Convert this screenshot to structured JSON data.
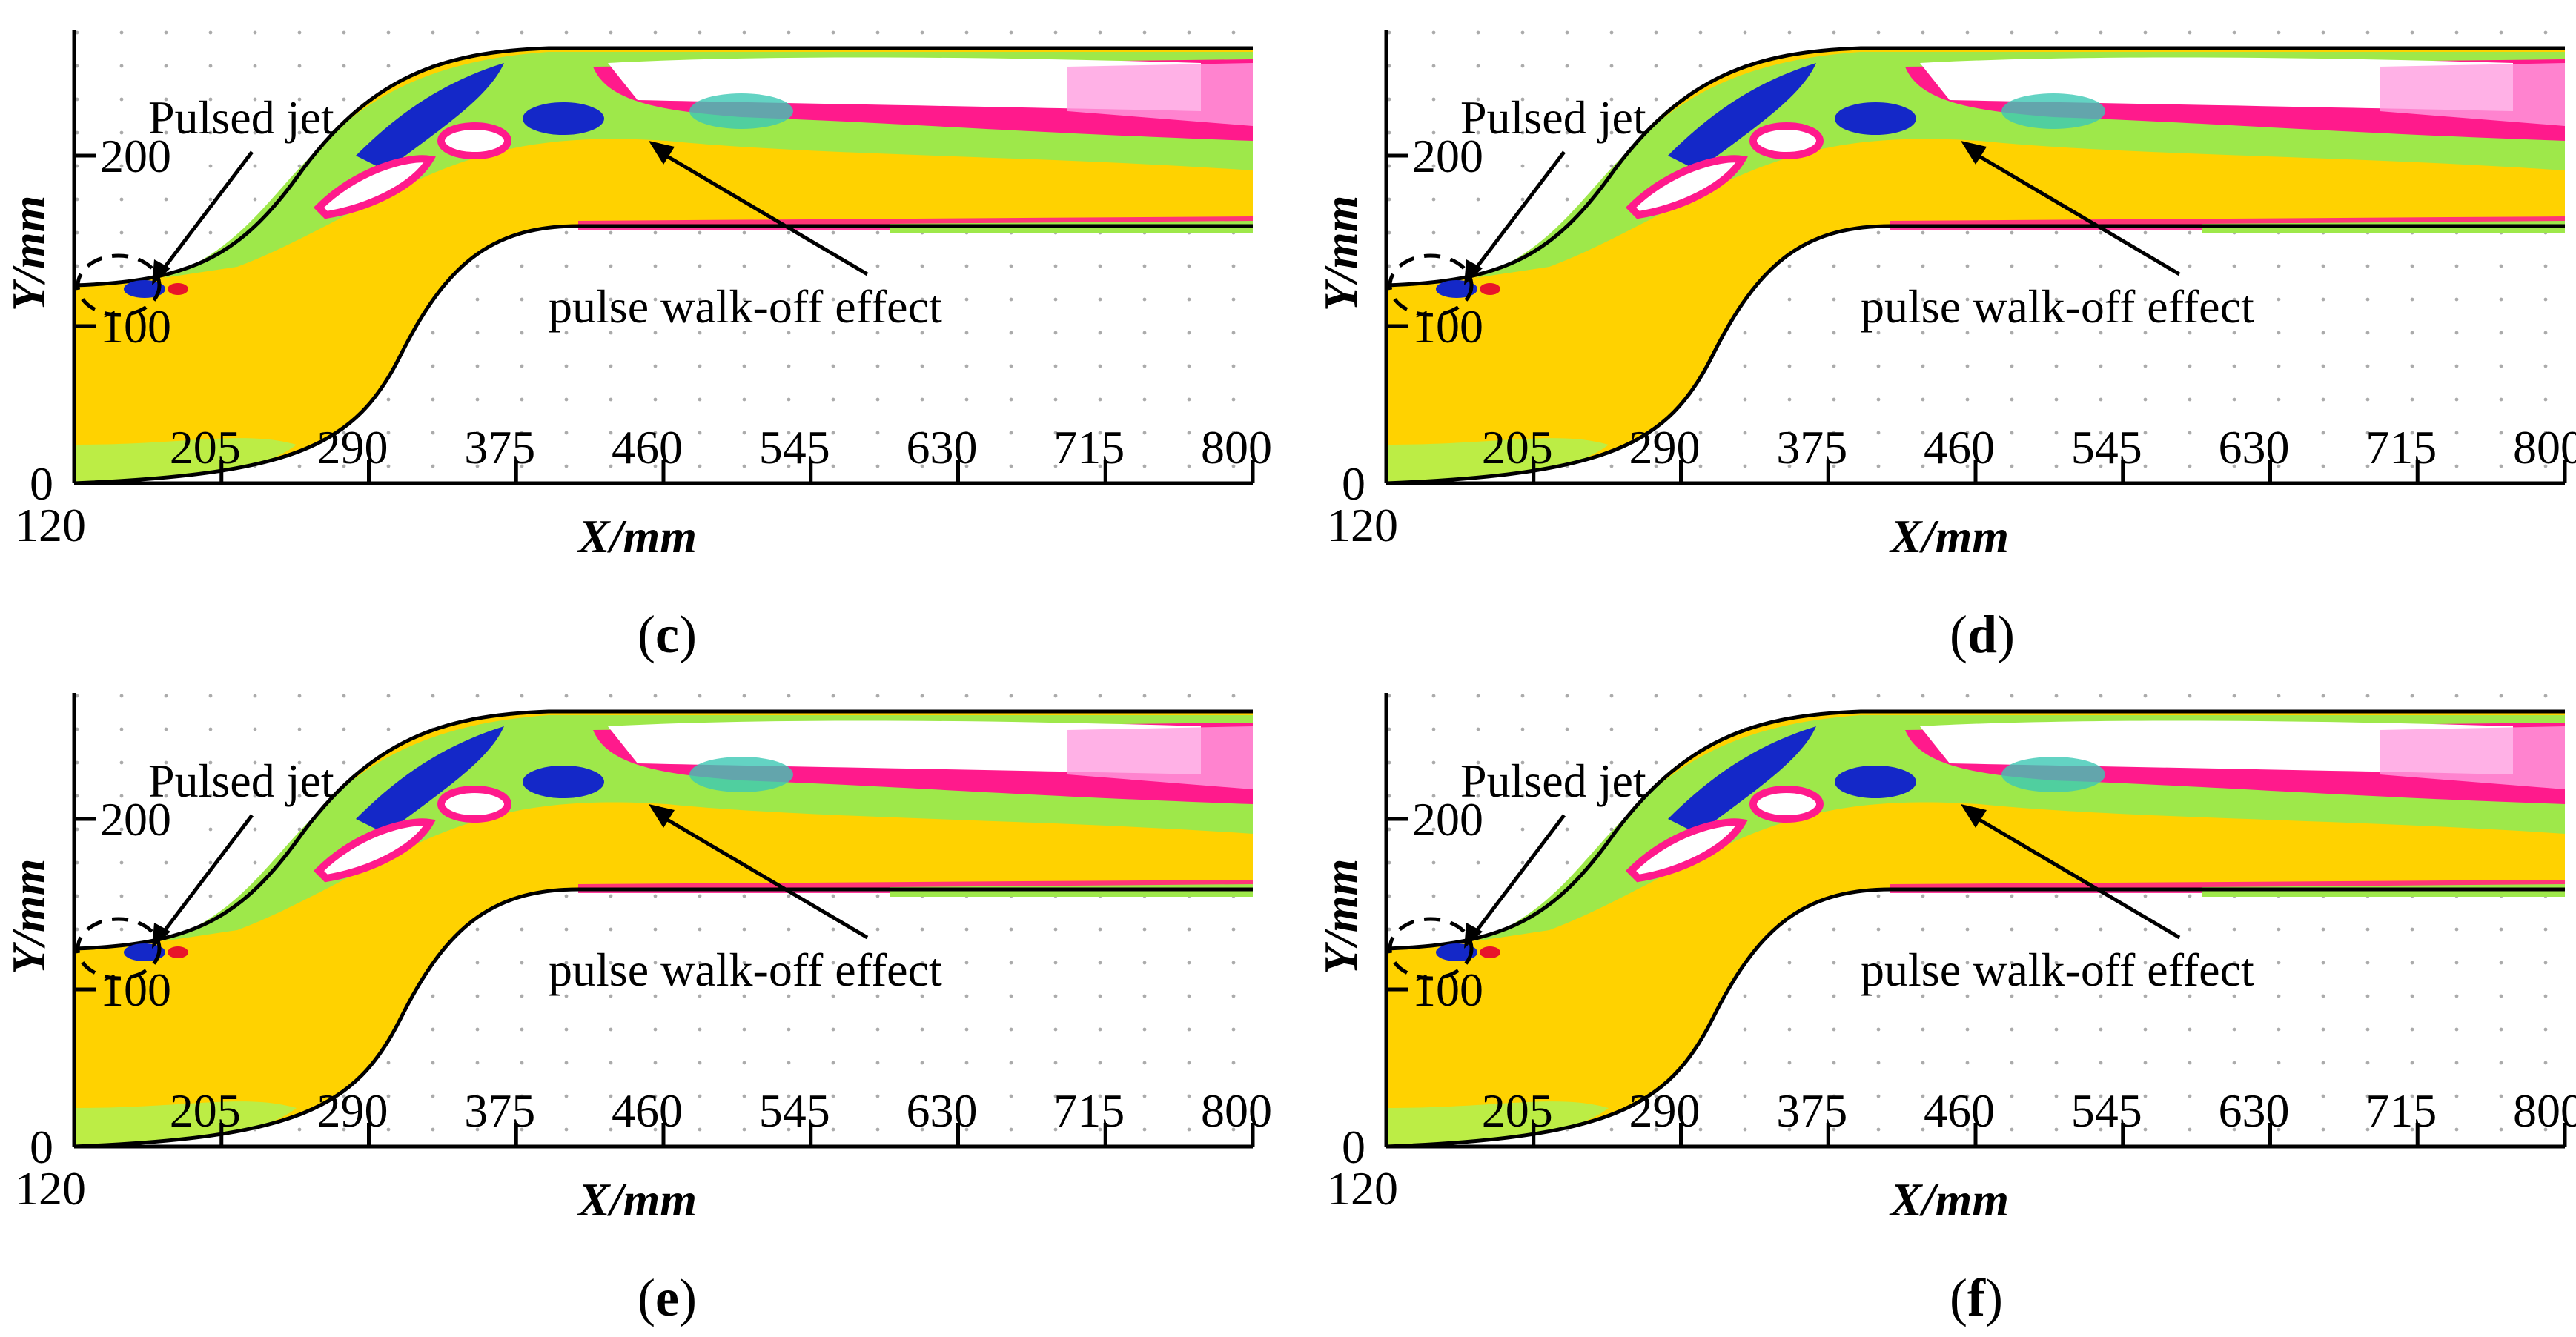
{
  "figure": {
    "panels": [
      {
        "caption_letter": "c",
        "jet_label": "Pulsed jet",
        "effect_label": "pulse walk-off effect"
      },
      {
        "caption_letter": "d",
        "jet_label": "Pulsed jet",
        "effect_label": "pulse walk-off effect"
      },
      {
        "caption_letter": "e",
        "jet_label": "Pulsed jet",
        "effect_label": "pulse walk-off effect"
      },
      {
        "caption_letter": "f",
        "jet_label": "Pulsed jet",
        "effect_label": "pulse walk-off effect"
      }
    ],
    "axes": {
      "x_title": "X/mm",
      "y_title": "Y/mm",
      "x_ticks": [
        "120",
        "205",
        "290",
        "375",
        "460",
        "545",
        "630",
        "715",
        "800"
      ],
      "y_ticks": [
        "0",
        "100",
        "200"
      ]
    },
    "colors": {
      "core": "#ffd200",
      "green": "#9ee84a",
      "blue": "#1428c8",
      "magenta": "#ff1a8c",
      "pink": "#ff9ee0",
      "white": "#ffffff",
      "red": "#e8142a"
    }
  }
}
